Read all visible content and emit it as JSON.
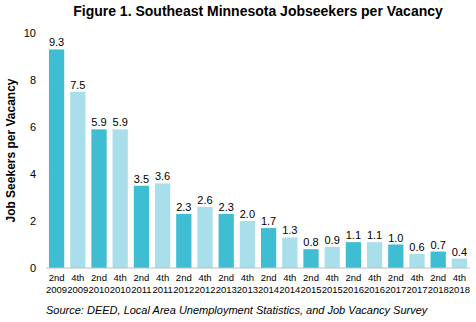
{
  "chart_data": {
    "type": "bar",
    "title": "Figure 1. Southeast Minnesota Jobseekers per Vacancy",
    "y_label": "Job Seekers per Vacancy",
    "source": "Source: DEED, Local Area Unemployment Statistics, and Job Vacancy Survey",
    "categories": [
      "2nd 2009",
      "4th 2009",
      "2nd 2010",
      "4th 2010",
      "2nd 2011",
      "4th 2011",
      "2nd 2012",
      "4th 2012",
      "2nd 2013",
      "4th 2013",
      "2nd 2014",
      "4th 2014",
      "2nd 2015",
      "4th 2015",
      "2nd 2016",
      "4th 2016",
      "2nd 2017",
      "4th 2017",
      "2nd 2018",
      "4th 2018"
    ],
    "values": [
      9.3,
      7.5,
      5.9,
      5.9,
      3.5,
      3.6,
      2.3,
      2.6,
      2.3,
      2.0,
      1.7,
      1.3,
      0.8,
      0.9,
      1.1,
      1.1,
      1.0,
      0.6,
      0.7,
      0.4
    ],
    "value_labels": [
      "9.3",
      "7.5",
      "5.9",
      "5.9",
      "3.5",
      "3.6",
      "2.3",
      "2.6",
      "2.3",
      "2.0",
      "1.7",
      "1.3",
      "0.8",
      "0.9",
      "1.1",
      "1.1",
      "1.0",
      "0.6",
      "0.7",
      "0.4"
    ],
    "colors": [
      "#3fbdd2",
      "#a9dfea",
      "#3fbdd2",
      "#a9dfea",
      "#3fbdd2",
      "#a9dfea",
      "#3fbdd2",
      "#a9dfea",
      "#3fbdd2",
      "#a9dfea",
      "#3fbdd2",
      "#a9dfea",
      "#3fbdd2",
      "#a9dfea",
      "#3fbdd2",
      "#a9dfea",
      "#3fbdd2",
      "#a9dfea",
      "#3fbdd2",
      "#a9dfea"
    ],
    "ylim": [
      0,
      10
    ],
    "yticks": [
      0,
      2,
      4,
      6,
      8,
      10
    ],
    "grid": false,
    "data_labels": true
  }
}
